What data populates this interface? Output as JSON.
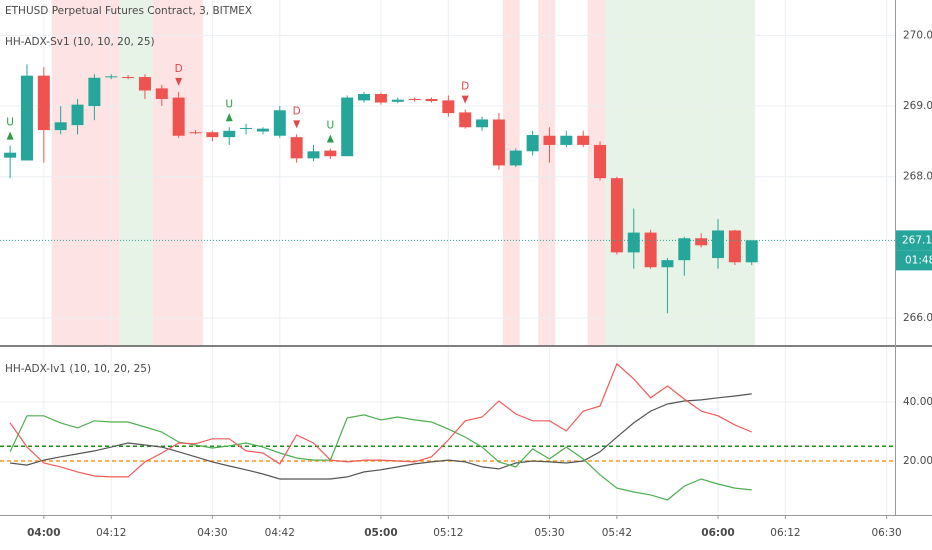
{
  "chart_data": [
    {
      "type": "candlestick",
      "title": "ETHUSD Perpetual Futures Contract, 3, BITMEX",
      "subtitle": "HH-ADX-Sv1 (10, 10, 20, 25)",
      "x": [
        234,
        237,
        240,
        243,
        246,
        249,
        252,
        255,
        258,
        261,
        264,
        267,
        270,
        273,
        276,
        279,
        282,
        285,
        288,
        291,
        294,
        297,
        300,
        303,
        306,
        309,
        312,
        315,
        318,
        321,
        324,
        327,
        330,
        333,
        336,
        339,
        342,
        345,
        348,
        351,
        354,
        357,
        360,
        363,
        366
      ],
      "open": [
        268.27,
        268.23,
        269.43,
        268.66,
        268.73,
        269.0,
        269.41,
        269.41,
        269.41,
        269.25,
        269.12,
        268.63,
        268.63,
        268.56,
        268.68,
        268.64,
        268.58,
        268.56,
        268.26,
        268.37,
        268.29,
        269.08,
        269.17,
        269.06,
        269.1,
        269.1,
        269.08,
        268.91,
        268.7,
        268.81,
        268.16,
        268.36,
        268.58,
        268.45,
        268.58,
        268.45,
        267.98,
        266.93,
        267.21,
        266.72,
        266.82,
        267.13,
        266.85,
        267.24,
        266.79
      ],
      "high": [
        268.44,
        269.59,
        269.55,
        269.0,
        269.1,
        269.45,
        269.45,
        269.44,
        269.45,
        269.3,
        269.2,
        268.66,
        268.65,
        268.7,
        268.75,
        268.7,
        269.0,
        268.6,
        268.45,
        268.4,
        269.15,
        269.2,
        269.19,
        269.12,
        269.12,
        269.12,
        269.15,
        268.95,
        268.85,
        268.9,
        268.4,
        268.65,
        268.7,
        268.65,
        268.65,
        268.5,
        268.0,
        267.55,
        267.25,
        266.85,
        267.15,
        267.2,
        267.4,
        267.25,
        267.1
      ],
      "low": [
        267.98,
        268.23,
        268.2,
        268.6,
        268.6,
        268.8,
        269.38,
        269.38,
        269.1,
        269.0,
        268.55,
        268.6,
        268.5,
        268.45,
        268.6,
        268.6,
        268.55,
        268.2,
        268.22,
        268.25,
        268.29,
        269.05,
        269.02,
        269.04,
        269.06,
        269.05,
        268.85,
        268.68,
        268.65,
        268.1,
        268.14,
        268.3,
        268.2,
        268.42,
        268.42,
        267.95,
        266.9,
        266.7,
        266.7,
        266.07,
        266.6,
        267.0,
        266.7,
        266.75,
        266.75
      ],
      "close": [
        268.34,
        269.43,
        268.66,
        268.77,
        269.02,
        269.4,
        269.42,
        269.4,
        269.22,
        269.1,
        268.58,
        268.62,
        268.56,
        268.65,
        268.69,
        268.68,
        268.94,
        268.26,
        268.36,
        268.29,
        269.12,
        269.17,
        269.05,
        269.09,
        269.09,
        269.07,
        268.9,
        268.7,
        268.81,
        268.16,
        268.37,
        268.59,
        268.45,
        268.58,
        268.45,
        267.98,
        266.93,
        267.21,
        266.72,
        266.82,
        267.13,
        267.03,
        267.24,
        266.79,
        267.1
      ],
      "up_color": "#26a69a",
      "down_color": "#ef5350",
      "bands": [
        {
          "from": 241.4,
          "to": 253.5,
          "color": "#fde3e3"
        },
        {
          "from": 253.5,
          "to": 259.4,
          "color": "#e6f3e6"
        },
        {
          "from": 259.4,
          "to": 268.3,
          "color": "#fde3e3"
        },
        {
          "from": 321.7,
          "to": 324.7,
          "color": "#fde3e3"
        },
        {
          "from": 328.0,
          "to": 331.0,
          "color": "#fde3e3"
        },
        {
          "from": 336.8,
          "to": 339.9,
          "color": "#fde3e3"
        },
        {
          "from": 339.9,
          "to": 366.6,
          "color": "#e6f3e6"
        }
      ],
      "signals": [
        {
          "x": 234,
          "label": "U",
          "color": "#2e9b4a"
        },
        {
          "x": 264,
          "label": "D",
          "color": "#e04848"
        },
        {
          "x": 273,
          "label": "U",
          "color": "#2e9b4a"
        },
        {
          "x": 285,
          "label": "D",
          "color": "#e04848"
        },
        {
          "x": 291,
          "label": "U",
          "color": "#2e9b4a"
        },
        {
          "x": 315,
          "label": "D",
          "color": "#e04848"
        }
      ],
      "last_price": {
        "value": 267.1,
        "label": "267.10"
      },
      "countdown": "01:48",
      "xlim": [
        232.2,
        391.5
      ],
      "ylim": [
        265.62,
        270.5
      ],
      "yticks": [
        {
          "value": 266,
          "label": "266.00"
        },
        {
          "value": 268,
          "label": "268.00"
        },
        {
          "value": 269,
          "label": "269.00"
        },
        {
          "value": 270,
          "label": "270.00"
        }
      ],
      "grid": true
    },
    {
      "type": "line",
      "title": "HH-ADX-Iv1 (10, 10, 20, 25)",
      "x": [
        234,
        237,
        240,
        243,
        246,
        249,
        252,
        255,
        258,
        261,
        264,
        267,
        270,
        273,
        276,
        279,
        282,
        285,
        288,
        291,
        294,
        297,
        300,
        303,
        306,
        309,
        312,
        315,
        318,
        321,
        324,
        327,
        330,
        333,
        336,
        339,
        342,
        345,
        348,
        351,
        354,
        357,
        360,
        363,
        366
      ],
      "series": [
        {
          "color": "#555555",
          "values": [
            19.3,
            18.6,
            20.3,
            21.4,
            22.4,
            23.4,
            24.7,
            26.1,
            25.4,
            24.7,
            23.1,
            21.4,
            19.7,
            18.3,
            17.0,
            15.6,
            13.9,
            13.9,
            13.9,
            13.9,
            14.6,
            16.3,
            17.0,
            18.0,
            19.0,
            19.7,
            20.3,
            19.7,
            18.0,
            17.3,
            19.3,
            20.0,
            19.7,
            19.3,
            20.0,
            23.1,
            28.1,
            32.9,
            36.9,
            39.3,
            40.3,
            40.7,
            41.4,
            42.0,
            42.7
          ]
        },
        {
          "color": "#4caf50",
          "values": [
            23.1,
            35.3,
            35.3,
            32.9,
            31.2,
            33.6,
            33.2,
            33.2,
            31.5,
            29.8,
            26.4,
            25.4,
            24.4,
            25.1,
            26.1,
            24.7,
            22.7,
            21.0,
            20.3,
            20.3,
            34.6,
            35.6,
            33.9,
            34.9,
            33.9,
            33.2,
            30.8,
            28.1,
            24.7,
            19.7,
            18.0,
            24.1,
            20.7,
            24.7,
            20.7,
            15.3,
            10.8,
            9.5,
            8.5,
            6.8,
            11.5,
            13.9,
            12.2,
            10.8,
            10.2
          ]
        },
        {
          "color": "#f05a5a",
          "values": [
            32.9,
            24.7,
            19.3,
            18.0,
            16.3,
            14.9,
            14.6,
            14.6,
            19.7,
            22.7,
            26.1,
            25.8,
            27.5,
            27.5,
            23.4,
            22.7,
            19.0,
            28.8,
            26.1,
            20.3,
            19.7,
            20.3,
            20.3,
            20.0,
            19.7,
            21.4,
            27.1,
            33.6,
            34.9,
            40.3,
            35.9,
            33.6,
            33.6,
            30.2,
            36.9,
            38.6,
            52.9,
            47.8,
            41.4,
            45.4,
            41.0,
            36.9,
            35.3,
            32.2,
            29.8
          ]
        }
      ],
      "levels": [
        {
          "value": 25,
          "color": "#1e8c1e"
        },
        {
          "value": 20,
          "color": "#f59a23"
        }
      ],
      "xlim": [
        232.2,
        391.5
      ],
      "ylim": [
        1.7,
        58.6
      ],
      "yticks": [
        {
          "value": 20,
          "label": "20.00"
        },
        {
          "value": 40,
          "label": "40.00"
        }
      ],
      "xticks": [
        {
          "value": 240,
          "label": "04:00"
        },
        {
          "value": 252,
          "label": "04:12"
        },
        {
          "value": 270,
          "label": "04:30"
        },
        {
          "value": 282,
          "label": "04:42"
        },
        {
          "value": 300,
          "label": "05:00"
        },
        {
          "value": 312,
          "label": "05:12"
        },
        {
          "value": 330,
          "label": "05:30"
        },
        {
          "value": 342,
          "label": "05:42"
        },
        {
          "value": 360,
          "label": "06:00"
        },
        {
          "value": 372,
          "label": "06:12"
        },
        {
          "value": 390,
          "label": "06:30"
        }
      ],
      "grid": true
    }
  ]
}
